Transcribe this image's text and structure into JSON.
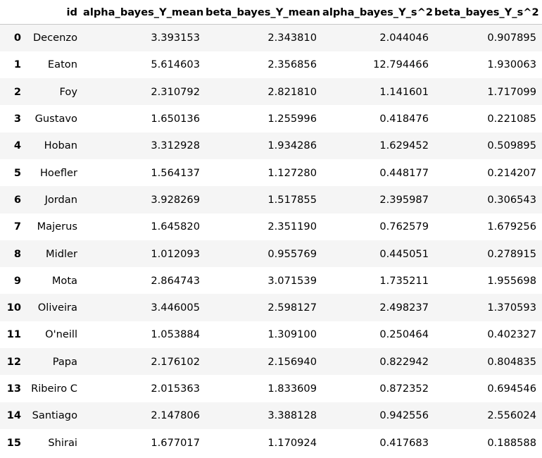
{
  "table": {
    "columns": [
      "",
      "id",
      "alpha_bayes_Y_mean",
      "beta_bayes_Y_mean",
      "alpha_bayes_Y_s^2",
      "beta_bayes_Y_s^2"
    ],
    "rows": [
      {
        "index": "0",
        "id": "Decenzo",
        "alpha_mean": "3.393153",
        "beta_mean": "2.343810",
        "alpha_s2": "2.044046",
        "beta_s2": "0.907895"
      },
      {
        "index": "1",
        "id": "Eaton",
        "alpha_mean": "5.614603",
        "beta_mean": "2.356856",
        "alpha_s2": "12.794466",
        "beta_s2": "1.930063"
      },
      {
        "index": "2",
        "id": "Foy",
        "alpha_mean": "2.310792",
        "beta_mean": "2.821810",
        "alpha_s2": "1.141601",
        "beta_s2": "1.717099"
      },
      {
        "index": "3",
        "id": "Gustavo",
        "alpha_mean": "1.650136",
        "beta_mean": "1.255996",
        "alpha_s2": "0.418476",
        "beta_s2": "0.221085"
      },
      {
        "index": "4",
        "id": "Hoban",
        "alpha_mean": "3.312928",
        "beta_mean": "1.934286",
        "alpha_s2": "1.629452",
        "beta_s2": "0.509895"
      },
      {
        "index": "5",
        "id": "Hoefler",
        "alpha_mean": "1.564137",
        "beta_mean": "1.127280",
        "alpha_s2": "0.448177",
        "beta_s2": "0.214207"
      },
      {
        "index": "6",
        "id": "Jordan",
        "alpha_mean": "3.928269",
        "beta_mean": "1.517855",
        "alpha_s2": "2.395987",
        "beta_s2": "0.306543"
      },
      {
        "index": "7",
        "id": "Majerus",
        "alpha_mean": "1.645820",
        "beta_mean": "2.351190",
        "alpha_s2": "0.762579",
        "beta_s2": "1.679256"
      },
      {
        "index": "8",
        "id": "Midler",
        "alpha_mean": "1.012093",
        "beta_mean": "0.955769",
        "alpha_s2": "0.445051",
        "beta_s2": "0.278915"
      },
      {
        "index": "9",
        "id": "Mota",
        "alpha_mean": "2.864743",
        "beta_mean": "3.071539",
        "alpha_s2": "1.735211",
        "beta_s2": "1.955698"
      },
      {
        "index": "10",
        "id": "Oliveira",
        "alpha_mean": "3.446005",
        "beta_mean": "2.598127",
        "alpha_s2": "2.498237",
        "beta_s2": "1.370593"
      },
      {
        "index": "11",
        "id": "O'neill",
        "alpha_mean": "1.053884",
        "beta_mean": "1.309100",
        "alpha_s2": "0.250464",
        "beta_s2": "0.402327"
      },
      {
        "index": "12",
        "id": "Papa",
        "alpha_mean": "2.176102",
        "beta_mean": "2.156940",
        "alpha_s2": "0.822942",
        "beta_s2": "0.804835"
      },
      {
        "index": "13",
        "id": "Ribeiro C",
        "alpha_mean": "2.015363",
        "beta_mean": "1.833609",
        "alpha_s2": "0.872352",
        "beta_s2": "0.694546"
      },
      {
        "index": "14",
        "id": "Santiago",
        "alpha_mean": "2.147806",
        "beta_mean": "3.388128",
        "alpha_s2": "0.942556",
        "beta_s2": "2.556024"
      },
      {
        "index": "15",
        "id": "Shirai",
        "alpha_mean": "1.677017",
        "beta_mean": "1.170924",
        "alpha_s2": "0.417683",
        "beta_s2": "0.188588"
      }
    ]
  }
}
